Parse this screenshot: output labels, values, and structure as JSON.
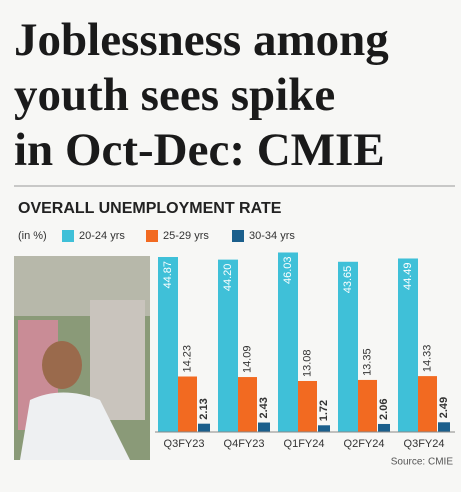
{
  "headline": [
    "Joblessness among",
    "youth sees spike",
    "in Oct-Dec: CMIE"
  ],
  "chart_data": {
    "type": "bar",
    "title": "OVERALL UNEMPLOYMENT RATE",
    "unit_note": "(in %)",
    "source": "Source: CMIE",
    "categories": [
      "Q3FY23",
      "Q4FY23",
      "Q1FY24",
      "Q2FY24",
      "Q3FY24"
    ],
    "series": [
      {
        "name": "20-24 yrs",
        "color": "#3fc0d8",
        "values": [
          44.87,
          44.2,
          46.03,
          43.65,
          44.49
        ],
        "value_labels": [
          "44.87",
          "44.20",
          "46.03",
          "43.65",
          "44.49"
        ]
      },
      {
        "name": "25-29 yrs",
        "color": "#f26a21",
        "values": [
          14.23,
          14.09,
          13.08,
          13.35,
          14.33
        ]
      },
      {
        "name": "30-34 yrs",
        "color": "#1b5f8c",
        "values": [
          2.13,
          2.43,
          1.72,
          2.06,
          2.49
        ]
      }
    ]
  }
}
